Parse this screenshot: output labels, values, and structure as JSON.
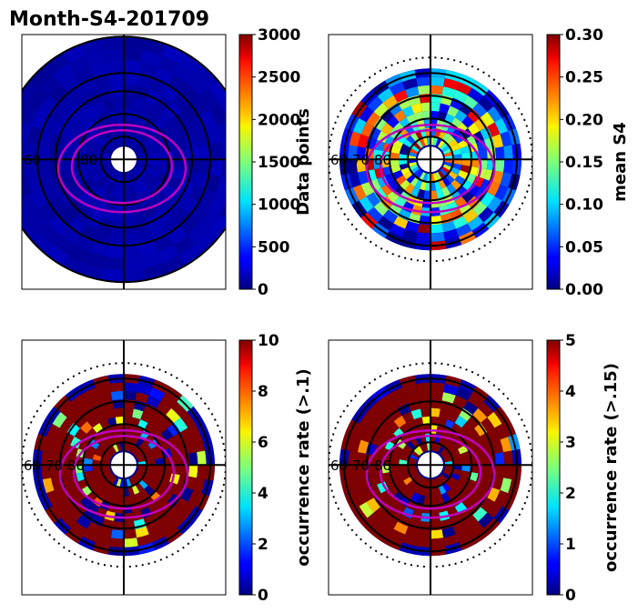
{
  "figure": {
    "title": "Month-S4-201709"
  },
  "chart_data": [
    {
      "type": "heatmap",
      "projection": "polar",
      "panel": "top-left",
      "colorbar": {
        "label": "Data points",
        "ticks": [
          "0",
          "500",
          "1000",
          "1500",
          "2000",
          "2500",
          "3000"
        ],
        "range": [
          0,
          3000
        ],
        "colormap": "jet"
      },
      "ring_labels": [
        "60",
        "80"
      ],
      "fill": "uniform-low"
    },
    {
      "type": "heatmap",
      "projection": "polar",
      "panel": "top-right",
      "colorbar": {
        "label": "mean S4",
        "ticks": [
          "0.00",
          "0.05",
          "0.10",
          "0.15",
          "0.20",
          "0.25",
          "0.30"
        ],
        "range": [
          0,
          0.3
        ],
        "colormap": "jet"
      },
      "ring_labels": [
        "60",
        "70",
        "80"
      ],
      "fill": "mixed"
    },
    {
      "type": "heatmap",
      "projection": "polar",
      "panel": "bottom-left",
      "colorbar": {
        "label": "occurrence rate (>.1)",
        "ticks": [
          "0",
          "2",
          "4",
          "6",
          "8",
          "10"
        ],
        "range": [
          0,
          10
        ],
        "colormap": "jet"
      },
      "ring_labels": [
        "60",
        "70",
        "80"
      ],
      "fill": "mostly-high"
    },
    {
      "type": "heatmap",
      "projection": "polar",
      "panel": "bottom-right",
      "colorbar": {
        "label": "occurrence rate (>.15)",
        "ticks": [
          "0",
          "1",
          "2",
          "3",
          "4",
          "5"
        ],
        "range": [
          0,
          5
        ],
        "colormap": "jet"
      },
      "ring_labels": [
        "60",
        "70",
        "80"
      ],
      "fill": "mostly-high"
    }
  ],
  "colors": {
    "ring_line": "#000000",
    "oval_line": "#c000c0",
    "low": "#00008b",
    "high": "#800000"
  }
}
